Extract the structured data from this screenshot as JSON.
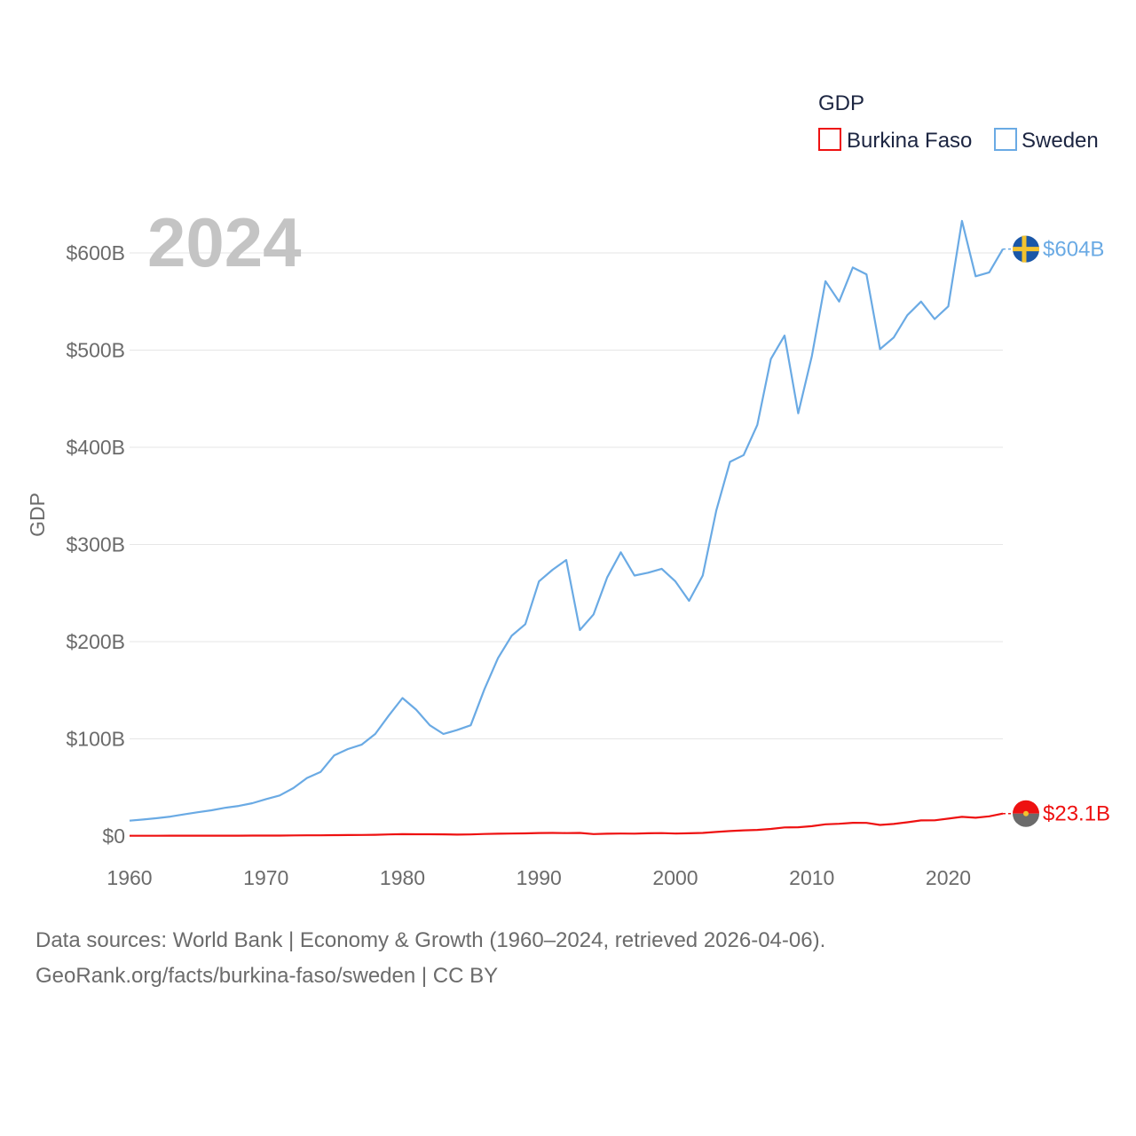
{
  "chart_data": {
    "type": "line",
    "title": "GDP",
    "year_label": "2024",
    "xlabel": "",
    "ylabel": "GDP",
    "xlim": [
      1960,
      2024
    ],
    "ylim": [
      0,
      640
    ],
    "y_unit": "billion USD",
    "x_ticks": [
      "1960",
      "1970",
      "1980",
      "1990",
      "2000",
      "2010",
      "2020"
    ],
    "y_ticks": [
      {
        "value": 0,
        "label": "$0"
      },
      {
        "value": 100,
        "label": "$100B"
      },
      {
        "value": 200,
        "label": "$200B"
      },
      {
        "value": 300,
        "label": "$300B"
      },
      {
        "value": 400,
        "label": "$400B"
      },
      {
        "value": 500,
        "label": "$500B"
      },
      {
        "value": 600,
        "label": "$600B"
      }
    ],
    "legend_title": "GDP",
    "x": [
      1960,
      1961,
      1962,
      1963,
      1964,
      1965,
      1966,
      1967,
      1968,
      1969,
      1970,
      1971,
      1972,
      1973,
      1974,
      1975,
      1976,
      1977,
      1978,
      1979,
      1980,
      1981,
      1982,
      1983,
      1984,
      1985,
      1986,
      1987,
      1988,
      1989,
      1990,
      1991,
      1992,
      1993,
      1994,
      1995,
      1996,
      1997,
      1998,
      1999,
      2000,
      2001,
      2002,
      2003,
      2004,
      2005,
      2006,
      2007,
      2008,
      2009,
      2010,
      2011,
      2012,
      2013,
      2014,
      2015,
      2016,
      2017,
      2018,
      2019,
      2020,
      2021,
      2022,
      2023,
      2024
    ],
    "series": [
      {
        "name": "Burkina Faso",
        "color": "#ee1111",
        "end_label": "$23.1B",
        "values": [
          0.3,
          0.3,
          0.3,
          0.4,
          0.4,
          0.4,
          0.4,
          0.4,
          0.4,
          0.5,
          0.5,
          0.5,
          0.6,
          0.7,
          0.7,
          0.9,
          1.0,
          1.1,
          1.3,
          1.6,
          1.9,
          1.8,
          1.8,
          1.7,
          1.5,
          1.6,
          2.1,
          2.4,
          2.6,
          2.7,
          3.1,
          3.2,
          3.0,
          3.2,
          2.0,
          2.4,
          2.6,
          2.5,
          2.8,
          3.0,
          2.6,
          2.8,
          3.2,
          4.2,
          5.1,
          5.8,
          6.3,
          7.3,
          8.9,
          9.0,
          10.1,
          12.1,
          12.6,
          13.6,
          13.5,
          11.4,
          12.4,
          14.2,
          16.1,
          16.2,
          17.9,
          19.7,
          18.8,
          20.3,
          23.1
        ]
      },
      {
        "name": "Sweden",
        "color": "#6aaae4",
        "end_label": "$604B",
        "values": [
          15.8,
          17.0,
          18.4,
          20.0,
          22.3,
          24.5,
          26.5,
          29.0,
          31.0,
          33.8,
          38.0,
          41.7,
          49.3,
          59.7,
          66.0,
          83.0,
          89.5,
          94.0,
          105.0,
          124.0,
          142.0,
          130.0,
          114.0,
          105.0,
          109.0,
          114.0,
          151.0,
          183.0,
          206.0,
          218.0,
          262.0,
          274.0,
          284.0,
          212.0,
          228.0,
          266.0,
          292.0,
          268.0,
          271.0,
          275.0,
          262.0,
          242.0,
          268.0,
          335.0,
          385.0,
          392.0,
          423.0,
          491.0,
          515.0,
          435.0,
          494.0,
          571.0,
          550.0,
          585.0,
          578.0,
          501.0,
          513.0,
          536.0,
          550.0,
          532.0,
          545.0,
          633.0,
          576.0,
          580.0,
          604.0
        ]
      }
    ]
  },
  "footer": {
    "line1": "Data sources: World Bank | Economy & Growth (1960–2024, retrieved 2026-04-06).",
    "line2": "GeoRank.org/facts/burkina-faso/sweden | CC BY"
  }
}
